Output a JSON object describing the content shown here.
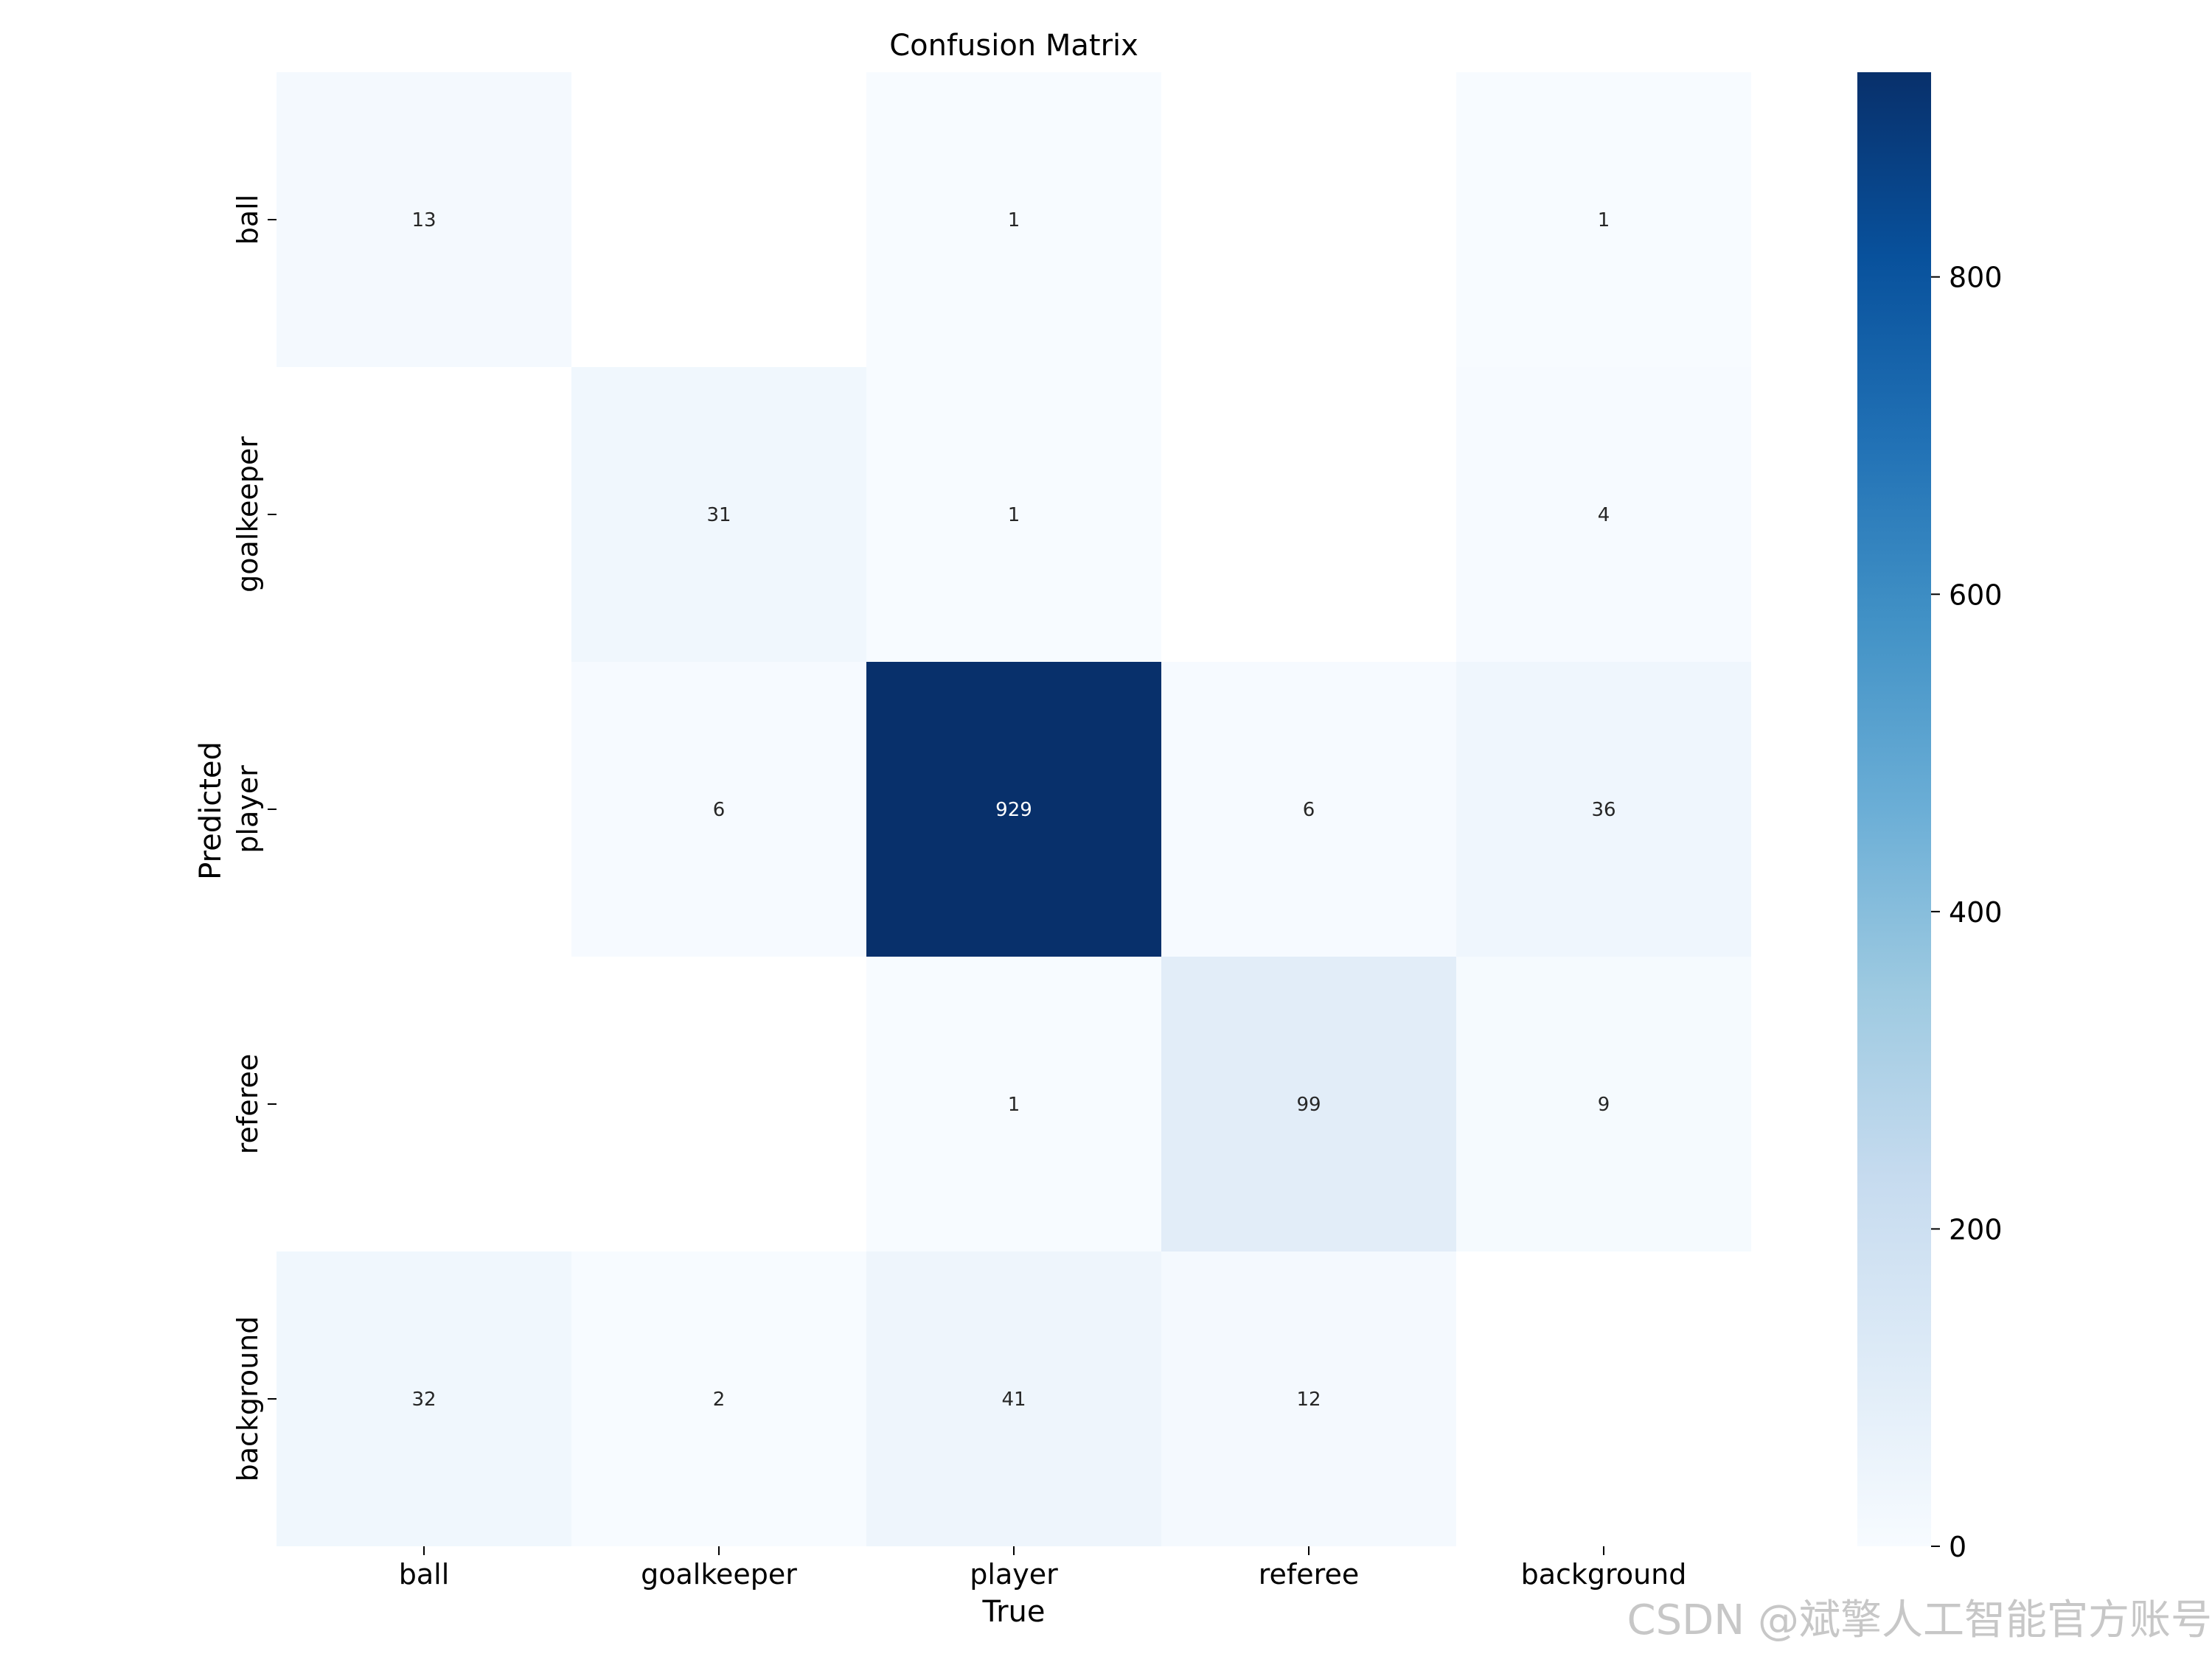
{
  "chart_data": {
    "type": "heatmap",
    "title": "Confusion Matrix",
    "xlabel": "True",
    "ylabel": "Predicted",
    "x_categories": [
      "ball",
      "goalkeeper",
      "player",
      "referee",
      "background"
    ],
    "y_categories": [
      "ball",
      "goalkeeper",
      "player",
      "referee",
      "background"
    ],
    "matrix": [
      [
        13,
        null,
        1,
        null,
        1
      ],
      [
        null,
        31,
        1,
        null,
        4
      ],
      [
        null,
        6,
        929,
        6,
        36
      ],
      [
        null,
        null,
        1,
        99,
        9
      ],
      [
        32,
        2,
        41,
        12,
        null
      ]
    ],
    "colormap": "Blues",
    "colorbar": {
      "min": 0,
      "max": 929,
      "ticks": [
        0,
        200,
        400,
        600,
        800
      ],
      "tick_labels": [
        "0",
        "200",
        "400",
        "600",
        "800"
      ]
    }
  },
  "watermark": "CSDN @斌擎人工智能官方账号"
}
